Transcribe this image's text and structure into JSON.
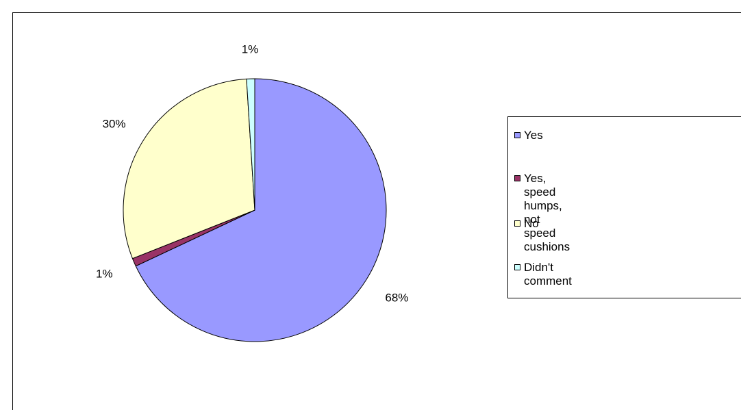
{
  "chart_data": {
    "type": "pie",
    "categories": [
      "Yes",
      "Yes, speed humps, not speed\ncushions",
      "No",
      "Didn't comment"
    ],
    "values": [
      68,
      1,
      30,
      1
    ],
    "data_labels": [
      "68%",
      "1%",
      "30%",
      "1%"
    ],
    "colors": [
      "#9999ff",
      "#993366",
      "#ffffcc",
      "#ccffff"
    ],
    "legend_position": "right",
    "title": ""
  }
}
